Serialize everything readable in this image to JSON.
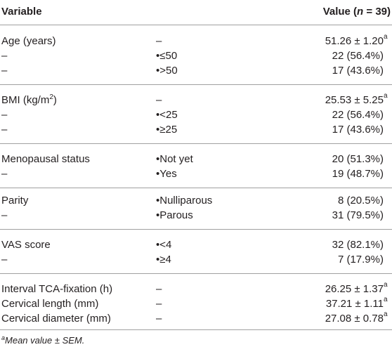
{
  "header": {
    "variable": "Variable",
    "value_prefix": "Value (",
    "value_n": "n",
    "value_suffix": " = 39)"
  },
  "groups": [
    [
      {
        "variable": "Age (years)",
        "category": "–",
        "value": "51.26 ± 1.20",
        "value_sup": "a"
      },
      {
        "variable": "–",
        "category": "•≤50",
        "value": "22 (56.4%)"
      },
      {
        "variable": "–",
        "category": "•>50",
        "value": "17 (43.6%)"
      }
    ],
    [
      {
        "variable": "BMI (kg/m",
        "variable_sup": "2",
        "variable_after": ")",
        "category": "–",
        "value": "25.53 ± 5.25",
        "value_sup": "a"
      },
      {
        "variable": "–",
        "category": "•<25",
        "value": "22 (56.4%)"
      },
      {
        "variable": "–",
        "category": "•≥25",
        "value": "17 (43.6%)"
      }
    ],
    [
      {
        "variable": "Menopausal status",
        "category": "•Not yet",
        "value": "20 (51.3%)"
      },
      {
        "variable": "–",
        "category": "•Yes",
        "value": "19 (48.7%)"
      }
    ],
    [
      {
        "variable": "Parity",
        "category": "•Nulliparous",
        "value": "8 (20.5%)"
      },
      {
        "variable": "–",
        "category": "•Parous",
        "value": "31 (79.5%)"
      }
    ],
    [
      {
        "variable": "VAS score",
        "category": "•<4",
        "value": "32 (82.1%)"
      },
      {
        "variable": "–",
        "category": "•≥4",
        "value": "7 (17.9%)"
      }
    ],
    [
      {
        "variable": "Interval TCA-fixation (h)",
        "category": "–",
        "value": "26.25 ± 1.37",
        "value_sup": "a"
      },
      {
        "variable": "Cervical length (mm)",
        "category": "–",
        "value": "37.21 ± 1.11",
        "value_sup": "a"
      },
      {
        "variable": "Cervical diameter (mm)",
        "category": "–",
        "value": "27.08 ± 0.78",
        "value_sup": "a"
      }
    ]
  ],
  "footnote": {
    "sup": "a",
    "text": "Mean value ± SEM."
  }
}
